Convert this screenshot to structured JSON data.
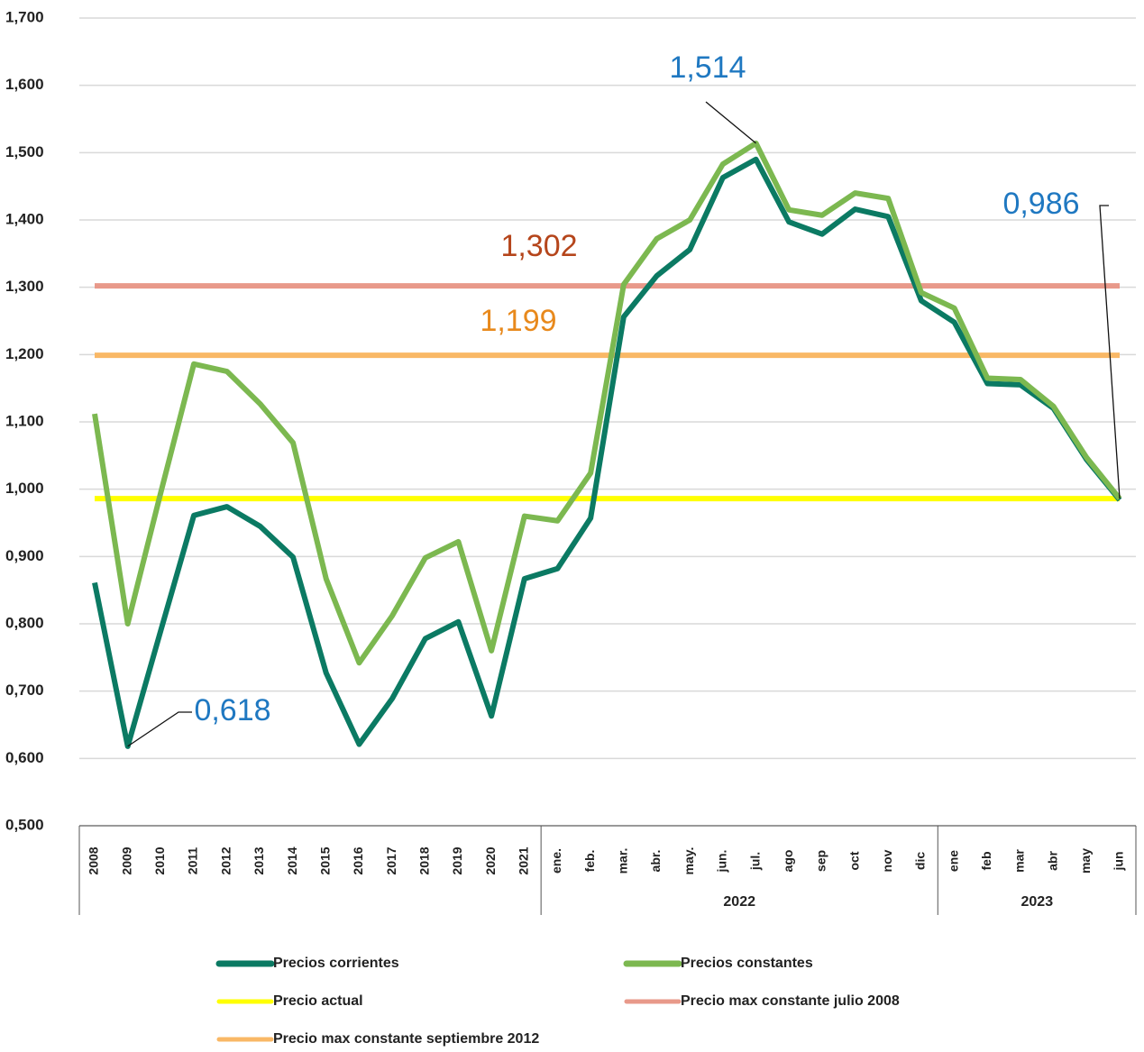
{
  "chart_data": {
    "type": "line",
    "categories": [
      "2008",
      "2009",
      "2010",
      "2011",
      "2012",
      "2013",
      "2014",
      "2015",
      "2016",
      "2017",
      "2018",
      "2019",
      "2020",
      "2021",
      "ene.",
      "feb.",
      "mar.",
      "abr.",
      "may.",
      "jun.",
      "jul.",
      "ago",
      "sep",
      "oct",
      "nov",
      "dic",
      "ene",
      "feb",
      "mar",
      "abr",
      "may",
      "jun"
    ],
    "category_groups": [
      {
        "label": "2022",
        "start": 14,
        "end": 25
      },
      {
        "label": "2023",
        "start": 26,
        "end": 31
      }
    ],
    "series": [
      {
        "name": "Precios corrientes",
        "color": "#0b7a63",
        "values": [
          0.861,
          0.618,
          0.79,
          0.961,
          0.974,
          0.945,
          0.899,
          0.727,
          0.621,
          0.689,
          0.778,
          0.803,
          0.663,
          0.867,
          0.882,
          0.957,
          1.256,
          1.317,
          1.356,
          1.463,
          1.49,
          1.397,
          1.379,
          1.416,
          1.405,
          1.28,
          1.248,
          1.157,
          1.155,
          1.12,
          1.044,
          0.984
        ]
      },
      {
        "name": "Precios constantes",
        "color": "#7cb850",
        "values": [
          1.112,
          0.8,
          0.995,
          1.186,
          1.175,
          1.127,
          1.069,
          0.867,
          0.742,
          0.812,
          0.898,
          0.922,
          0.76,
          0.96,
          0.953,
          1.024,
          1.304,
          1.372,
          1.4,
          1.483,
          1.514,
          1.415,
          1.407,
          1.44,
          1.432,
          1.292,
          1.269,
          1.165,
          1.163,
          1.123,
          1.047,
          0.986
        ]
      }
    ],
    "reference_lines": [
      {
        "name": "Precio  actual",
        "color": "#ffff00",
        "value": 0.986
      },
      {
        "name": "Precio max constante julio 2008",
        "color": "#e8998a",
        "value": 1.302,
        "label": "1,302",
        "label_color": "#b5451b"
      },
      {
        "name": "Precio max constante septiembre 2012",
        "color": "#f9b866",
        "value": 1.199,
        "label": "1,199",
        "label_color": "#e8891c"
      }
    ],
    "annotations": [
      {
        "text": "1,514",
        "category": "jul.",
        "series": "Precios constantes",
        "color": "#1f78c1"
      },
      {
        "text": "0,618",
        "category": "2009",
        "series": "Precios corrientes",
        "color": "#1f78c1"
      },
      {
        "text": "0,986",
        "category": "jun",
        "series": "Precios constantes",
        "color": "#1f78c1"
      }
    ],
    "ylim": [
      0.5,
      1.7
    ],
    "yticks": [
      {
        "value": 0.5,
        "label": "0,500"
      },
      {
        "value": 0.6,
        "label": "0,600"
      },
      {
        "value": 0.7,
        "label": "0,700"
      },
      {
        "value": 0.8,
        "label": "0,800"
      },
      {
        "value": 0.9,
        "label": "0,900"
      },
      {
        "value": 1.0,
        "label": "1,000"
      },
      {
        "value": 1.1,
        "label": "1,100"
      },
      {
        "value": 1.2,
        "label": "1,200"
      },
      {
        "value": 1.3,
        "label": "1,300"
      },
      {
        "value": 1.4,
        "label": "1,400"
      },
      {
        "value": 1.5,
        "label": "1,500"
      },
      {
        "value": 1.6,
        "label": "1,600"
      },
      {
        "value": 1.7,
        "label": "1,700"
      }
    ],
    "grid": true,
    "legend": "bottom"
  }
}
